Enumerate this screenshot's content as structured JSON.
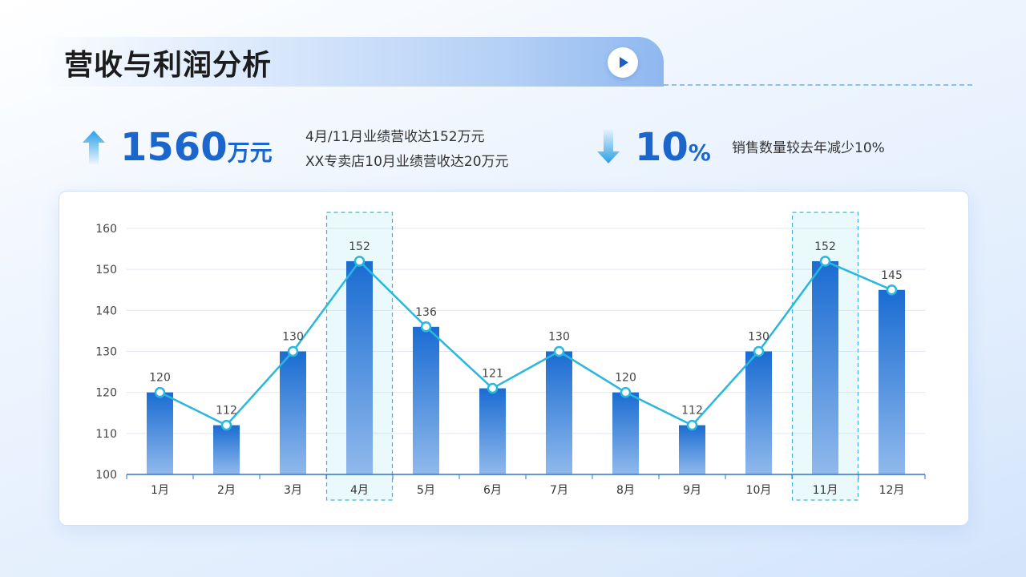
{
  "header": {
    "title": "营收与利润分析"
  },
  "kpis": {
    "revenue": {
      "value": "1560",
      "unit": "万元"
    },
    "revenue_notes": [
      "4月/11月业绩营收达152万元",
      "XX专卖店10月业绩营收达20万元"
    ],
    "sales": {
      "value": "10",
      "unit": "%"
    },
    "sales_note": "销售数量较去年减少10%"
  },
  "icons": {
    "up": "arrow-up-icon",
    "down": "arrow-down-icon",
    "play": "play-icon"
  },
  "colors": {
    "accent": "#1a66cc",
    "bar_top": "#1a6cd2",
    "bar_bottom": "#90b9ec",
    "line": "#2ab7de",
    "highlight": "#38b6e0"
  },
  "chart_data": {
    "type": "bar",
    "categories": [
      "1月",
      "2月",
      "3月",
      "4月",
      "5月",
      "6月",
      "7月",
      "8月",
      "9月",
      "10月",
      "11月",
      "12月"
    ],
    "series": [
      {
        "type": "bar",
        "values": [
          120,
          112,
          130,
          152,
          136,
          121,
          130,
          120,
          112,
          130,
          152,
          145
        ]
      },
      {
        "type": "line",
        "values": [
          120,
          112,
          130,
          152,
          136,
          121,
          130,
          120,
          112,
          130,
          152,
          145
        ]
      }
    ],
    "data_labels": [
      "120",
      "112",
      "130",
      "152",
      "136",
      "121",
      "130",
      "120",
      "112",
      "130",
      "152",
      "145"
    ],
    "highlighted_categories": [
      "4月",
      "11月"
    ],
    "yticks": [
      "100",
      "110",
      "120",
      "130",
      "140",
      "150",
      "160"
    ],
    "ylim": [
      100,
      160
    ],
    "grid": true,
    "legend": "none"
  }
}
